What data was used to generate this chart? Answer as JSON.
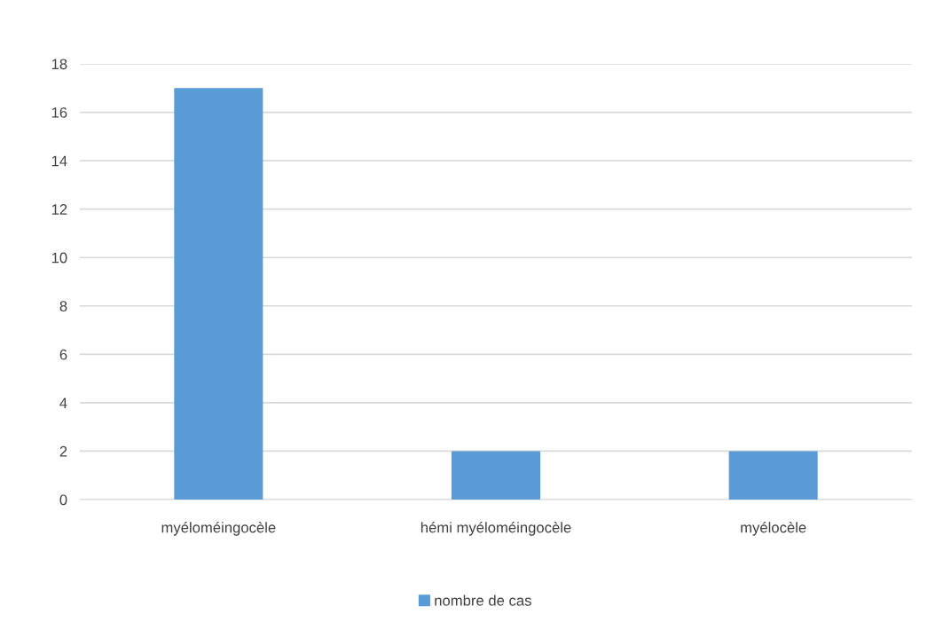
{
  "chart_data": {
    "type": "bar",
    "categories": [
      "myéloméingocèle",
      "hémi myéloméingocèle",
      "myélocèle"
    ],
    "series": [
      {
        "name": "nombre de cas",
        "color": "#5b9bd5",
        "values": [
          17,
          2,
          2
        ]
      }
    ],
    "ylim": [
      0,
      18
    ],
    "yticks": [
      0,
      2,
      4,
      6,
      8,
      10,
      12,
      14,
      16,
      18
    ],
    "grid": "y",
    "legend": "bottom"
  }
}
